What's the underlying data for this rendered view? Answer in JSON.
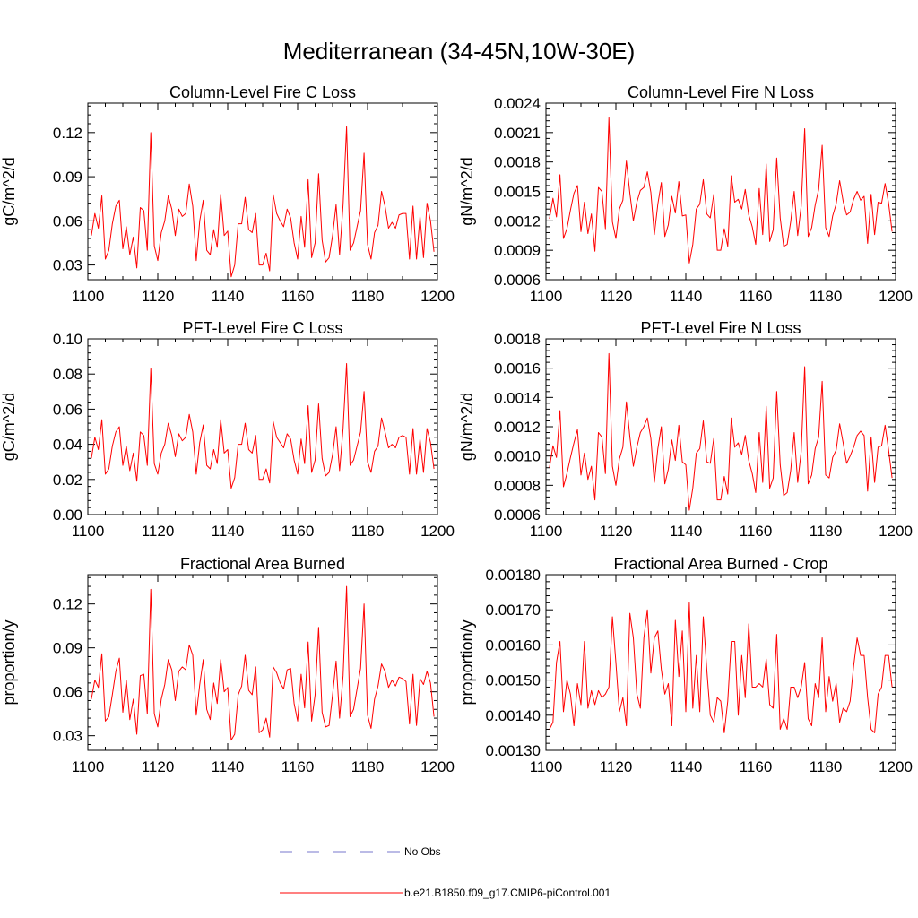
{
  "figure": {
    "title": "Mediterranean (34-45N,10W-30E)"
  },
  "colors": {
    "series": "#ff0000",
    "obs": "#7777cc",
    "axis": "#000000"
  },
  "legend": {
    "obs_label": "No Obs",
    "model_label": "b.e21.B1850.f09_g17.CMIP6-piControl.001"
  },
  "chart_data": [
    {
      "type": "line",
      "title": "Column-Level Fire C Loss",
      "ylabel": "gC/m^2/d",
      "xlabel": "",
      "xlim": [
        1100,
        1200
      ],
      "ylim": [
        0.02,
        0.14
      ],
      "xticks": [
        1100,
        1120,
        1140,
        1160,
        1180,
        1200
      ],
      "xtick_labels": [
        "1100",
        "1120",
        "1140",
        "1160",
        "1180",
        "1200"
      ],
      "yticks": [
        0.03,
        0.06,
        0.09,
        0.12
      ],
      "ytick_labels": [
        "0.03",
        "0.06",
        "0.09",
        "0.12"
      ],
      "x_start": 1101,
      "series": [
        {
          "name": "b.e21.B1850.f09_g17.CMIP6-piControl.001",
          "values": [
            0.05,
            0.065,
            0.055,
            0.077,
            0.034,
            0.04,
            0.058,
            0.07,
            0.074,
            0.041,
            0.056,
            0.037,
            0.049,
            0.028,
            0.069,
            0.067,
            0.04,
            0.12,
            0.043,
            0.033,
            0.052,
            0.06,
            0.077,
            0.068,
            0.05,
            0.068,
            0.063,
            0.065,
            0.085,
            0.07,
            0.033,
            0.06,
            0.074,
            0.04,
            0.037,
            0.054,
            0.042,
            0.078,
            0.05,
            0.053,
            0.022,
            0.03,
            0.058,
            0.058,
            0.076,
            0.054,
            0.052,
            0.065,
            0.03,
            0.03,
            0.038,
            0.026,
            0.078,
            0.065,
            0.06,
            0.056,
            0.068,
            0.062,
            0.045,
            0.034,
            0.063,
            0.042,
            0.088,
            0.035,
            0.045,
            0.092,
            0.047,
            0.032,
            0.035,
            0.05,
            0.071,
            0.037,
            0.071,
            0.124,
            0.04,
            0.045,
            0.056,
            0.067,
            0.106,
            0.044,
            0.034,
            0.052,
            0.057,
            0.08,
            0.07,
            0.055,
            0.059,
            0.055,
            0.064,
            0.065,
            0.065,
            0.034,
            0.07,
            0.034,
            0.063,
            0.035,
            0.072,
            0.06,
            0.039
          ]
        }
      ]
    },
    {
      "type": "line",
      "title": "Column-Level Fire N Loss",
      "ylabel": "gN/m^2/d",
      "xlabel": "",
      "xlim": [
        1100,
        1200
      ],
      "ylim": [
        0.0006,
        0.0024
      ],
      "xticks": [
        1100,
        1120,
        1140,
        1160,
        1180,
        1200
      ],
      "xtick_labels": [
        "1100",
        "1120",
        "1140",
        "1160",
        "1180",
        "1200"
      ],
      "yticks": [
        0.0006,
        0.0009,
        0.0012,
        0.0015,
        0.0018,
        0.0021,
        0.0024
      ],
      "ytick_labels": [
        "0.0006",
        "0.0009",
        "0.0012",
        "0.0015",
        "0.0018",
        "0.0021",
        "0.0024"
      ],
      "x_start": 1101,
      "series": [
        {
          "name": "b.e21.B1850.f09_g17.CMIP6-piControl.001",
          "values": [
            0.00122,
            0.00143,
            0.00124,
            0.00167,
            0.00102,
            0.00112,
            0.00131,
            0.00148,
            0.00156,
            0.00109,
            0.00139,
            0.00107,
            0.00127,
            0.00089,
            0.00154,
            0.0015,
            0.00112,
            0.00225,
            0.00119,
            0.00102,
            0.00132,
            0.00141,
            0.00181,
            0.00148,
            0.0012,
            0.00139,
            0.00151,
            0.00154,
            0.0017,
            0.00149,
            0.00106,
            0.00137,
            0.00159,
            0.00104,
            0.00116,
            0.00145,
            0.00128,
            0.0016,
            0.00125,
            0.00126,
            0.00077,
            0.00096,
            0.00132,
            0.00137,
            0.00162,
            0.00127,
            0.00123,
            0.00147,
            0.0009,
            0.0009,
            0.00112,
            0.00094,
            0.00166,
            0.00139,
            0.00142,
            0.00132,
            0.00152,
            0.00126,
            0.00114,
            0.00096,
            0.00153,
            0.00106,
            0.00178,
            0.00099,
            0.00111,
            0.00184,
            0.00123,
            0.00094,
            0.00096,
            0.00119,
            0.0015,
            0.00105,
            0.00135,
            0.00214,
            0.00104,
            0.00113,
            0.00136,
            0.00152,
            0.00197,
            0.00113,
            0.00104,
            0.00125,
            0.00137,
            0.00161,
            0.0014,
            0.00126,
            0.00129,
            0.00142,
            0.0015,
            0.00141,
            0.00145,
            0.00097,
            0.00147,
            0.00106,
            0.00139,
            0.00138,
            0.00158,
            0.00138,
            0.00109
          ]
        }
      ]
    },
    {
      "type": "line",
      "title": "PFT-Level Fire C Loss",
      "ylabel": "gC/m^2/d",
      "xlabel": "",
      "xlim": [
        1100,
        1200
      ],
      "ylim": [
        0.0,
        0.1
      ],
      "xticks": [
        1100,
        1120,
        1140,
        1160,
        1180,
        1200
      ],
      "xtick_labels": [
        "1100",
        "1120",
        "1140",
        "1160",
        "1180",
        "1200"
      ],
      "yticks": [
        0.0,
        0.02,
        0.04,
        0.06,
        0.08,
        0.1
      ],
      "ytick_labels": [
        "0.00",
        "0.02",
        "0.04",
        "0.06",
        "0.08",
        "0.10"
      ],
      "x_start": 1101,
      "series": [
        {
          "name": "b.e21.B1850.f09_g17.CMIP6-piControl.001",
          "values": [
            0.032,
            0.044,
            0.037,
            0.054,
            0.023,
            0.026,
            0.039,
            0.047,
            0.05,
            0.028,
            0.039,
            0.025,
            0.035,
            0.019,
            0.047,
            0.045,
            0.028,
            0.083,
            0.029,
            0.023,
            0.035,
            0.04,
            0.052,
            0.045,
            0.033,
            0.046,
            0.042,
            0.044,
            0.057,
            0.047,
            0.023,
            0.041,
            0.051,
            0.028,
            0.026,
            0.037,
            0.029,
            0.054,
            0.035,
            0.037,
            0.015,
            0.021,
            0.04,
            0.04,
            0.052,
            0.037,
            0.035,
            0.045,
            0.02,
            0.02,
            0.026,
            0.018,
            0.053,
            0.044,
            0.041,
            0.038,
            0.046,
            0.043,
            0.031,
            0.023,
            0.043,
            0.029,
            0.062,
            0.024,
            0.031,
            0.063,
            0.032,
            0.022,
            0.024,
            0.034,
            0.05,
            0.025,
            0.049,
            0.086,
            0.028,
            0.031,
            0.039,
            0.047,
            0.07,
            0.03,
            0.024,
            0.036,
            0.039,
            0.055,
            0.047,
            0.038,
            0.04,
            0.038,
            0.044,
            0.045,
            0.044,
            0.023,
            0.049,
            0.023,
            0.043,
            0.024,
            0.049,
            0.041,
            0.026
          ]
        }
      ]
    },
    {
      "type": "line",
      "title": "PFT-Level Fire N Loss",
      "ylabel": "gN/m^2/d",
      "xlabel": "",
      "xlim": [
        1100,
        1200
      ],
      "ylim": [
        0.0006,
        0.0018
      ],
      "xticks": [
        1100,
        1120,
        1140,
        1160,
        1180,
        1200
      ],
      "xtick_labels": [
        "1100",
        "1120",
        "1140",
        "1160",
        "1180",
        "1200"
      ],
      "yticks": [
        0.0006,
        0.0008,
        0.001,
        0.0012,
        0.0014,
        0.0016,
        0.0018
      ],
      "ytick_labels": [
        "0.0006",
        "0.0008",
        "0.0010",
        "0.0012",
        "0.0014",
        "0.0016",
        "0.0018"
      ],
      "x_start": 1101,
      "series": [
        {
          "name": "b.e21.B1850.f09_g17.CMIP6-piControl.001",
          "values": [
            0.00092,
            0.00107,
            0.00099,
            0.00131,
            0.00079,
            0.00088,
            0.00099,
            0.00109,
            0.00118,
            0.00087,
            0.00102,
            0.00084,
            0.00093,
            0.0007,
            0.00116,
            0.00113,
            0.00088,
            0.0017,
            0.00093,
            0.0008,
            0.00098,
            0.00106,
            0.00137,
            0.00113,
            0.00093,
            0.00106,
            0.00116,
            0.0012,
            0.00126,
            0.00112,
            0.00082,
            0.00105,
            0.0012,
            0.00081,
            0.00091,
            0.00111,
            0.00097,
            0.00121,
            0.00096,
            0.00094,
            0.00063,
            0.00078,
            0.00102,
            0.00105,
            0.00124,
            0.00096,
            0.00095,
            0.00112,
            0.0007,
            0.0007,
            0.00086,
            0.00074,
            0.00126,
            0.00106,
            0.00109,
            0.00101,
            0.00114,
            0.00097,
            0.00088,
            0.00075,
            0.00116,
            0.00082,
            0.00134,
            0.00078,
            0.00085,
            0.00144,
            0.00094,
            0.00073,
            0.00075,
            0.0009,
            0.00116,
            0.00082,
            0.00103,
            0.00161,
            0.00081,
            0.00087,
            0.00105,
            0.00113,
            0.00151,
            0.00087,
            0.00085,
            0.00099,
            0.00104,
            0.00122,
            0.00109,
            0.00095,
            0.001,
            0.00106,
            0.00114,
            0.00117,
            0.00114,
            0.00076,
            0.00113,
            0.00082,
            0.00106,
            0.00107,
            0.00121,
            0.00104,
            0.00085
          ]
        }
      ]
    },
    {
      "type": "line",
      "title": "Fractional Area Burned",
      "ylabel": "proportion/y",
      "xlabel": "",
      "xlim": [
        1100,
        1200
      ],
      "ylim": [
        0.02,
        0.14
      ],
      "xticks": [
        1100,
        1120,
        1140,
        1160,
        1180,
        1200
      ],
      "xtick_labels": [
        "1100",
        "1120",
        "1140",
        "1160",
        "1180",
        "1200"
      ],
      "yticks": [
        0.03,
        0.06,
        0.09,
        0.12
      ],
      "ytick_labels": [
        "0.03",
        "0.06",
        "0.09",
        "0.12"
      ],
      "x_start": 1101,
      "series": [
        {
          "name": "b.e21.B1850.f09_g17.CMIP6-piControl.001",
          "values": [
            0.055,
            0.068,
            0.063,
            0.086,
            0.04,
            0.043,
            0.058,
            0.074,
            0.083,
            0.046,
            0.068,
            0.041,
            0.055,
            0.031,
            0.071,
            0.072,
            0.045,
            0.13,
            0.045,
            0.036,
            0.055,
            0.065,
            0.082,
            0.075,
            0.054,
            0.074,
            0.077,
            0.075,
            0.092,
            0.085,
            0.044,
            0.065,
            0.082,
            0.048,
            0.041,
            0.066,
            0.052,
            0.082,
            0.06,
            0.063,
            0.027,
            0.031,
            0.058,
            0.064,
            0.085,
            0.061,
            0.058,
            0.077,
            0.032,
            0.034,
            0.042,
            0.029,
            0.077,
            0.073,
            0.066,
            0.062,
            0.075,
            0.076,
            0.052,
            0.04,
            0.072,
            0.049,
            0.094,
            0.04,
            0.058,
            0.104,
            0.046,
            0.036,
            0.037,
            0.058,
            0.081,
            0.042,
            0.071,
            0.132,
            0.043,
            0.048,
            0.062,
            0.076,
            0.12,
            0.044,
            0.035,
            0.055,
            0.064,
            0.079,
            0.074,
            0.063,
            0.068,
            0.064,
            0.07,
            0.069,
            0.067,
            0.038,
            0.072,
            0.037,
            0.069,
            0.065,
            0.074,
            0.066,
            0.043
          ]
        }
      ]
    },
    {
      "type": "line",
      "title": "Fractional Area Burned - Crop",
      "ylabel": "proportion/y",
      "xlabel": "",
      "xlim": [
        1100,
        1200
      ],
      "ylim": [
        0.0013,
        0.0018
      ],
      "xticks": [
        1100,
        1120,
        1140,
        1160,
        1180,
        1200
      ],
      "xtick_labels": [
        "1100",
        "1120",
        "1140",
        "1160",
        "1180",
        "1200"
      ],
      "yticks": [
        0.0013,
        0.0014,
        0.0015,
        0.0016,
        0.0017,
        0.0018
      ],
      "ytick_labels": [
        "0.00130",
        "0.00140",
        "0.00150",
        "0.00160",
        "0.00170",
        "0.00180"
      ],
      "x_start": 1101,
      "series": [
        {
          "name": "b.e21.B1850.f09_g17.CMIP6-piControl.001",
          "values": [
            0.00136,
            0.00138,
            0.00155,
            0.00161,
            0.00141,
            0.0015,
            0.00146,
            0.00137,
            0.00149,
            0.00143,
            0.00161,
            0.00142,
            0.00147,
            0.00143,
            0.00147,
            0.00145,
            0.00146,
            0.00148,
            0.00168,
            0.00155,
            0.00141,
            0.00145,
            0.00137,
            0.00169,
            0.00162,
            0.00146,
            0.00142,
            0.00162,
            0.0017,
            0.00152,
            0.00162,
            0.00164,
            0.00153,
            0.00146,
            0.00149,
            0.00137,
            0.00167,
            0.00151,
            0.00164,
            0.00141,
            0.00172,
            0.00142,
            0.00157,
            0.00141,
            0.00168,
            0.00153,
            0.0014,
            0.00138,
            0.00145,
            0.00144,
            0.00135,
            0.00144,
            0.00161,
            0.00161,
            0.0014,
            0.00157,
            0.00145,
            0.00166,
            0.00148,
            0.00148,
            0.00149,
            0.00148,
            0.00156,
            0.00143,
            0.00142,
            0.00163,
            0.00136,
            0.00139,
            0.00136,
            0.00148,
            0.00148,
            0.00145,
            0.00148,
            0.00155,
            0.00139,
            0.00137,
            0.00149,
            0.00145,
            0.00162,
            0.00141,
            0.00151,
            0.00144,
            0.00149,
            0.00138,
            0.00142,
            0.00141,
            0.00144,
            0.00154,
            0.00162,
            0.00157,
            0.00157,
            0.00145,
            0.00136,
            0.00135,
            0.00146,
            0.00148,
            0.00157,
            0.00157,
            0.00148
          ]
        }
      ]
    }
  ]
}
